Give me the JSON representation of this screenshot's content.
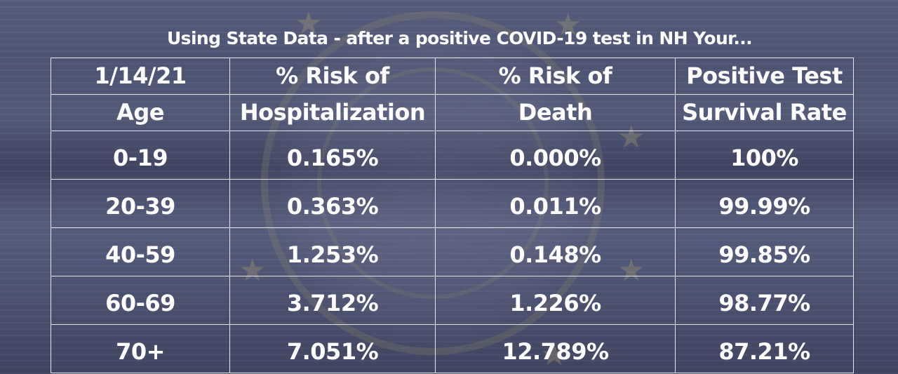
{
  "title": "Using State Data - after a positive COVID-19 test in NH Your...",
  "table": {
    "header_row_1": [
      "1/14/21",
      "% Risk of",
      "% Risk of",
      "Positive Test"
    ],
    "header_row_2": [
      "Age",
      "Hospitalization",
      "Death",
      "Survival Rate"
    ],
    "rows": [
      [
        "0-19",
        "0.165%",
        "0.000%",
        "100%"
      ],
      [
        "20-39",
        "0.363%",
        "0.011%",
        "99.99%"
      ],
      [
        "40-59",
        "1.253%",
        "0.148%",
        "99.85%"
      ],
      [
        "60-69",
        "3.712%",
        "1.226%",
        "98.77%"
      ],
      [
        "70+",
        "7.051%",
        "12.789%",
        "87.21%"
      ]
    ]
  },
  "colors": {
    "background": "#4f5575",
    "text": "#ffffff",
    "grid": "#e6e6ee"
  },
  "background_image": "nh-state-seal-on-wood-watermark"
}
